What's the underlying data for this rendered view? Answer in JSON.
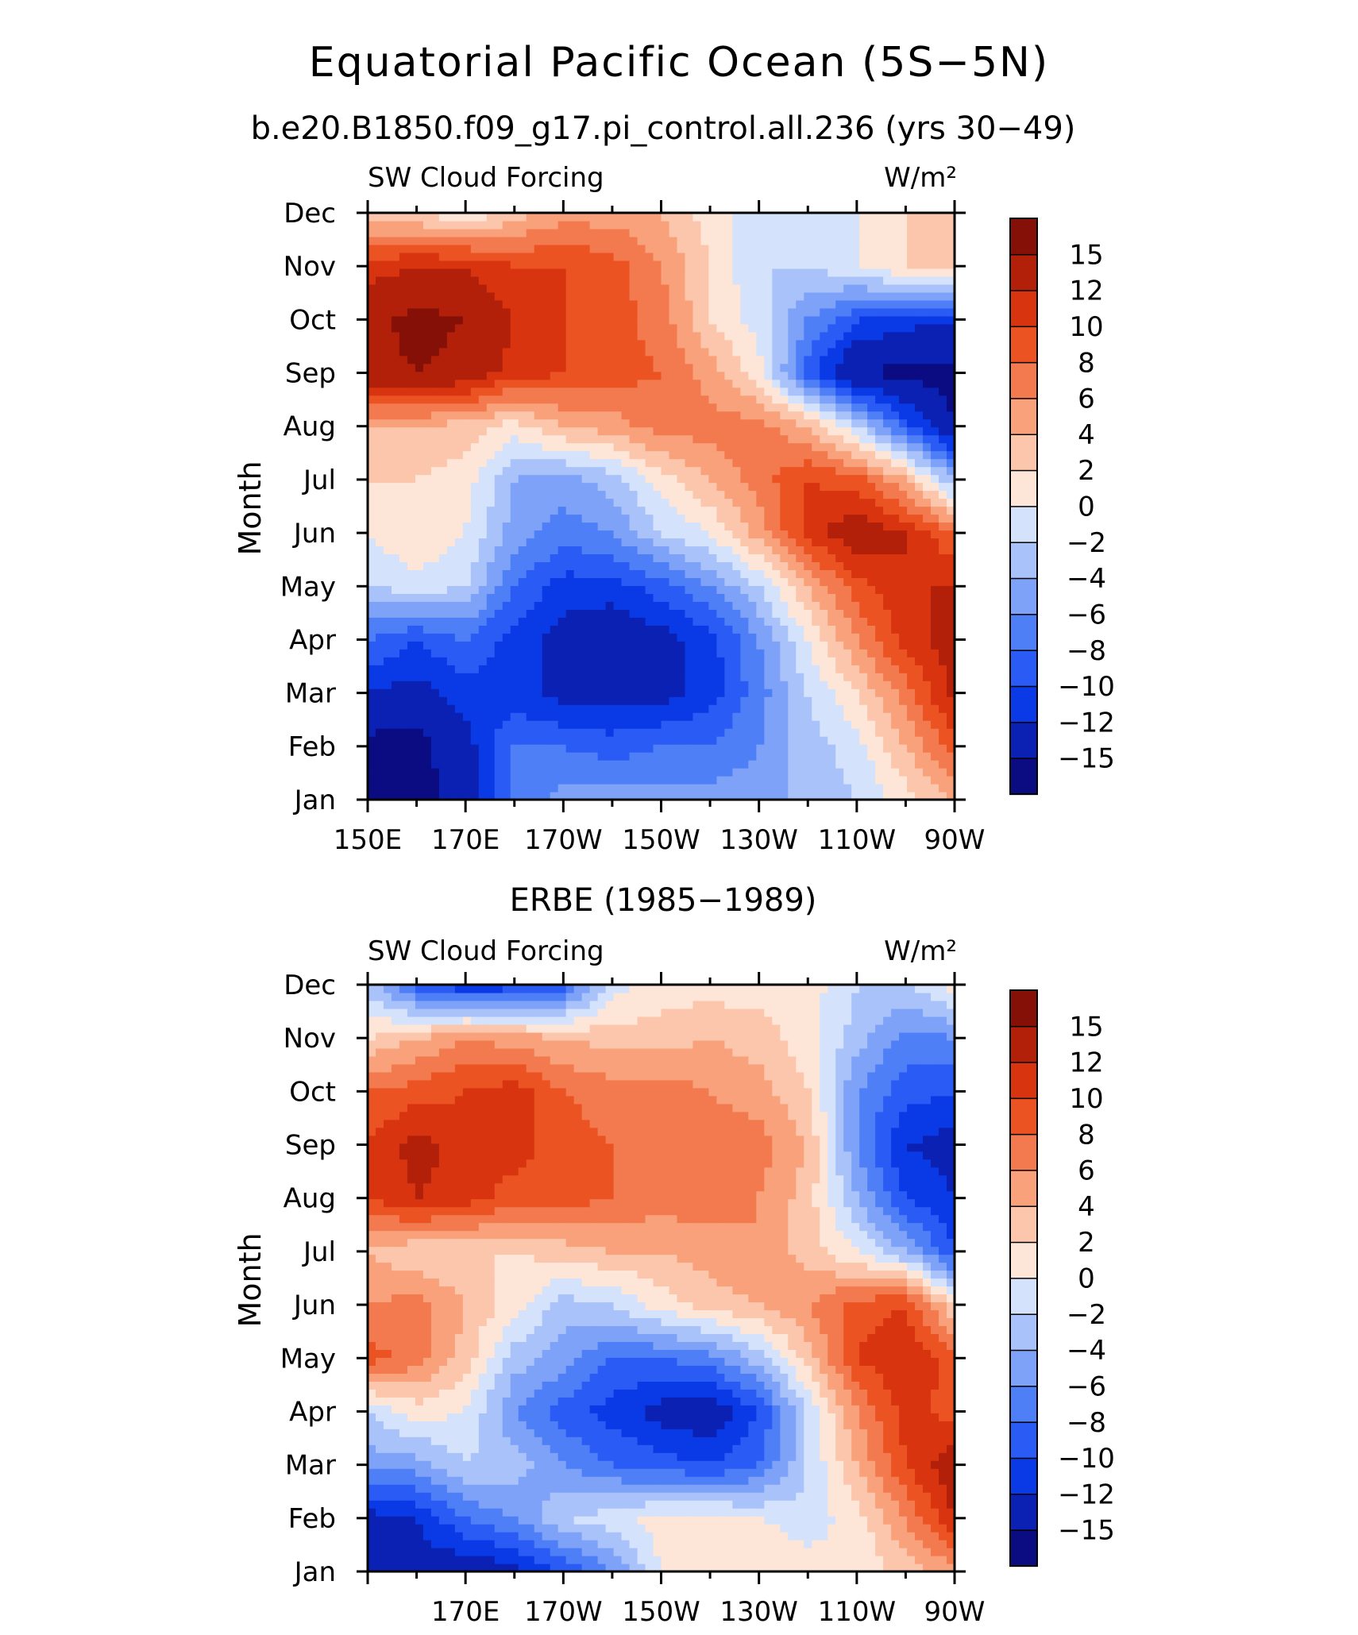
{
  "title": "Equatorial Pacific Ocean (5S−5N)",
  "colors": {
    "levels": [
      "#0b0b82",
      "#0a21b3",
      "#0a3ae6",
      "#2a5cf5",
      "#4f7ff7",
      "#7ea2f8",
      "#a9c2fa",
      "#d4e2fc",
      "#fde6d8",
      "#fbc6ab",
      "#f8a17b",
      "#f27a4e",
      "#ec5322",
      "#d93410",
      "#b3200a",
      "#851007"
    ]
  },
  "chart_data": [
    {
      "type": "heatmap",
      "subtitle": "b.e20.B1850.f09_g17.pi_control.all.236 (yrs 30−49)",
      "variable": "SW Cloud Forcing",
      "units": "W/m²",
      "ylabel": "Month",
      "x_ticks": [
        "150E",
        "170E",
        "170W",
        "150W",
        "130W",
        "110W",
        "90W"
      ],
      "y_ticks": [
        "Jan",
        "Feb",
        "Mar",
        "Apr",
        "May",
        "Jun",
        "Jul",
        "Aug",
        "Sep",
        "Oct",
        "Nov",
        "Dec"
      ],
      "colorbar_labels": [
        "15",
        "12",
        "10",
        "8",
        "6",
        "4",
        "2",
        "0",
        "−2",
        "−4",
        "−6",
        "−8",
        "−10",
        "−12",
        "−15"
      ],
      "x_lon": [
        150,
        160,
        170,
        180,
        190,
        200,
        210,
        220,
        230,
        240,
        250,
        260,
        270
      ],
      "grid": [
        [
          -15,
          -16,
          -14,
          -8,
          -5,
          -5,
          -5,
          -5,
          -5,
          -3,
          -2,
          1,
          4
        ],
        [
          -16,
          -16,
          -13,
          -8,
          -8,
          -9,
          -8,
          -8,
          -6,
          -3,
          -1,
          4,
          9
        ],
        [
          -12,
          -13,
          -11,
          -11,
          -13,
          -13,
          -13,
          -11,
          -7,
          -2,
          2,
          7,
          13
        ],
        [
          -8,
          -10,
          -8,
          -11,
          -13,
          -14,
          -13,
          -11,
          -6,
          0,
          6,
          11,
          13
        ],
        [
          -2,
          -1,
          -2,
          -8,
          -11,
          -11,
          -9,
          -6,
          -2,
          4,
          9,
          12,
          12
        ],
        [
          0,
          2,
          0,
          -5,
          -7,
          -6,
          -2,
          0,
          5,
          11,
          14,
          12,
          8
        ],
        [
          2,
          2,
          1,
          -4,
          -5,
          -3,
          1,
          4,
          7,
          10,
          9,
          4,
          -4
        ],
        [
          4,
          4,
          3,
          1,
          4,
          5,
          7,
          7,
          7,
          4,
          -2,
          -9,
          -15
        ],
        [
          14,
          15,
          14,
          11,
          10,
          9,
          8,
          5,
          1,
          -9,
          -15,
          -16,
          -16
        ],
        [
          14,
          16,
          15,
          12,
          10,
          9,
          7,
          2,
          -1,
          -6,
          -10,
          -11,
          -12
        ],
        [
          11,
          12,
          12,
          10,
          10,
          9,
          6,
          2,
          -2,
          -2,
          0,
          2,
          3
        ],
        [
          3,
          2,
          0,
          3,
          5,
          5,
          4,
          1,
          -1,
          -2,
          0,
          2,
          2
        ]
      ]
    },
    {
      "type": "heatmap",
      "subtitle": "ERBE (1985−1989)",
      "variable": "SW Cloud Forcing",
      "units": "W/m²",
      "ylabel": "Month",
      "x_ticks": [
        "170E",
        "170W",
        "150W",
        "130W",
        "110W",
        "90W"
      ],
      "y_ticks": [
        "Jan",
        "Feb",
        "Mar",
        "Apr",
        "May",
        "Jun",
        "Jul",
        "Aug",
        "Sep",
        "Oct",
        "Nov",
        "Dec"
      ],
      "colorbar_labels": [
        "15",
        "12",
        "10",
        "8",
        "6",
        "4",
        "2",
        "0",
        "−2",
        "−4",
        "−6",
        "−8",
        "−10",
        "−12",
        "−15"
      ],
      "x_lon": [
        150,
        160,
        170,
        180,
        190,
        200,
        210,
        220,
        230,
        240,
        250,
        260,
        270
      ],
      "grid": [
        [
          -12,
          -13,
          -14,
          -13,
          -10,
          -6,
          0,
          2,
          2,
          1,
          0,
          3,
          5
        ],
        [
          -13,
          -12,
          -8,
          -6,
          -2,
          -1,
          1,
          1,
          0,
          -1,
          1,
          6,
          12
        ],
        [
          -5,
          -5,
          -2,
          -3,
          -6,
          -8,
          -9,
          -10,
          -8,
          -2,
          4,
          10,
          14
        ],
        [
          -2,
          1,
          0,
          -6,
          -9,
          -11,
          -13,
          -14,
          -10,
          -2,
          6,
          11,
          9
        ],
        [
          9,
          7,
          3,
          -3,
          -5,
          -8,
          -8,
          -7,
          -3,
          3,
          10,
          12,
          9
        ],
        [
          6,
          7,
          4,
          1,
          -3,
          -2,
          1,
          3,
          4,
          6,
          9,
          10,
          2
        ],
        [
          4,
          2,
          2,
          2,
          3,
          4,
          4,
          5,
          6,
          3,
          0,
          -4,
          -10
        ],
        [
          10,
          12,
          11,
          9,
          9,
          8,
          7,
          7,
          6,
          3,
          -4,
          -10,
          -12
        ],
        [
          10,
          13,
          11,
          11,
          9,
          8,
          7,
          7,
          7,
          4,
          -6,
          -12,
          -13
        ],
        [
          8,
          9,
          10,
          11,
          8,
          7,
          7,
          6,
          5,
          2,
          -6,
          -9,
          -10
        ],
        [
          2,
          4,
          6,
          5,
          4,
          3,
          3,
          4,
          3,
          1,
          -3,
          -7,
          -6
        ],
        [
          -3,
          -9,
          -12,
          -11,
          -9,
          -1,
          1,
          1,
          1,
          1,
          -2,
          -2,
          1
        ]
      ]
    }
  ]
}
